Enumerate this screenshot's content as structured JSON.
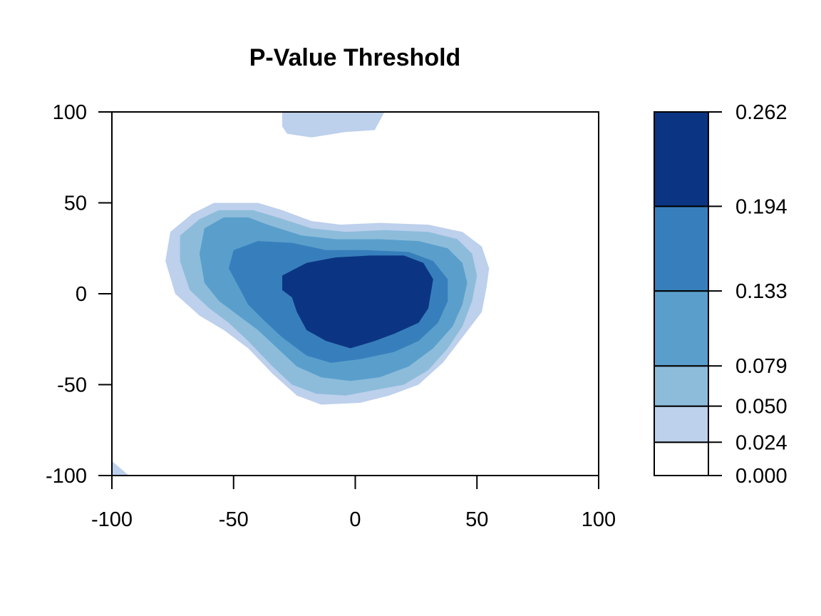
{
  "chart_data": {
    "type": "heatmap",
    "title": "P-Value Threshold",
    "xlabel": "",
    "ylabel": "",
    "xlim": [
      -100,
      100
    ],
    "ylim": [
      -100,
      100
    ],
    "x_ticks": [
      -100,
      -50,
      0,
      50,
      100
    ],
    "y_ticks": [
      -100,
      -50,
      0,
      50,
      100
    ],
    "legend_placement": "right",
    "grid": false,
    "colorbar": {
      "breaks": [
        0.0,
        0.024,
        0.05,
        0.079,
        0.133,
        0.194,
        0.262
      ],
      "labels": [
        "0.000",
        "0.024",
        "0.050",
        "0.079",
        "0.133",
        "0.194",
        "0.262"
      ],
      "colors": [
        "#ffffff",
        "#bdd0ec",
        "#8dbcdb",
        "#5a9fcc",
        "#377fbc",
        "#0b3583"
      ]
    },
    "regions": [
      {
        "level": 1,
        "polygon": [
          [
            -76,
            34
          ],
          [
            -67,
            44
          ],
          [
            -58,
            50
          ],
          [
            -40,
            50
          ],
          [
            -30,
            46
          ],
          [
            -18,
            40
          ],
          [
            -6,
            38
          ],
          [
            10,
            39
          ],
          [
            30,
            38
          ],
          [
            44,
            34
          ],
          [
            52,
            26
          ],
          [
            55,
            14
          ],
          [
            54,
            4
          ],
          [
            52,
            -10
          ],
          [
            44,
            -24
          ],
          [
            36,
            -38
          ],
          [
            26,
            -50
          ],
          [
            14,
            -56
          ],
          [
            2,
            -60
          ],
          [
            -14,
            -61
          ],
          [
            -24,
            -56
          ],
          [
            -34,
            -44
          ],
          [
            -44,
            -30
          ],
          [
            -54,
            -20
          ],
          [
            -64,
            -12
          ],
          [
            -74,
            0
          ],
          [
            -78,
            18
          ]
        ]
      },
      {
        "level": 1,
        "polygon": [
          [
            -30,
            100
          ],
          [
            12,
            100
          ],
          [
            8,
            90
          ],
          [
            -4,
            89
          ],
          [
            -18,
            86
          ],
          [
            -28,
            88
          ],
          [
            -30,
            92
          ]
        ]
      },
      {
        "level": 1,
        "polygon": [
          [
            -100,
            -92
          ],
          [
            -93,
            -100
          ],
          [
            -100,
            -100
          ]
        ]
      },
      {
        "level": 2,
        "polygon": [
          [
            -72,
            32
          ],
          [
            -64,
            41
          ],
          [
            -56,
            46
          ],
          [
            -42,
            46
          ],
          [
            -32,
            42
          ],
          [
            -18,
            36
          ],
          [
            -4,
            34
          ],
          [
            12,
            35
          ],
          [
            30,
            34
          ],
          [
            42,
            30
          ],
          [
            48,
            22
          ],
          [
            50,
            10
          ],
          [
            48,
            -4
          ],
          [
            44,
            -18
          ],
          [
            38,
            -30
          ],
          [
            30,
            -42
          ],
          [
            20,
            -50
          ],
          [
            8,
            -53
          ],
          [
            -4,
            -56
          ],
          [
            -16,
            -55
          ],
          [
            -26,
            -50
          ],
          [
            -34,
            -40
          ],
          [
            -44,
            -26
          ],
          [
            -52,
            -16
          ],
          [
            -60,
            -8
          ],
          [
            -68,
            2
          ],
          [
            -72,
            18
          ]
        ]
      },
      {
        "level": 3,
        "polygon": [
          [
            -62,
            36
          ],
          [
            -54,
            42
          ],
          [
            -44,
            42
          ],
          [
            -36,
            38
          ],
          [
            -22,
            32
          ],
          [
            -8,
            30
          ],
          [
            10,
            30
          ],
          [
            26,
            29
          ],
          [
            38,
            25
          ],
          [
            44,
            17
          ],
          [
            46,
            6
          ],
          [
            44,
            -6
          ],
          [
            40,
            -18
          ],
          [
            32,
            -30
          ],
          [
            22,
            -40
          ],
          [
            10,
            -46
          ],
          [
            -2,
            -48
          ],
          [
            -14,
            -46
          ],
          [
            -24,
            -40
          ],
          [
            -32,
            -30
          ],
          [
            -40,
            -20
          ],
          [
            -48,
            -12
          ],
          [
            -56,
            -4
          ],
          [
            -62,
            6
          ],
          [
            -64,
            22
          ]
        ]
      },
      {
        "level": 4,
        "polygon": [
          [
            -50,
            24
          ],
          [
            -40,
            29
          ],
          [
            -26,
            28
          ],
          [
            -12,
            24
          ],
          [
            4,
            24
          ],
          [
            22,
            23
          ],
          [
            32,
            18
          ],
          [
            38,
            8
          ],
          [
            38,
            -4
          ],
          [
            34,
            -16
          ],
          [
            26,
            -26
          ],
          [
            16,
            -32
          ],
          [
            2,
            -36
          ],
          [
            -10,
            -38
          ],
          [
            -20,
            -34
          ],
          [
            -30,
            -24
          ],
          [
            -38,
            -14
          ],
          [
            -44,
            -6
          ],
          [
            -48,
            4
          ],
          [
            -52,
            14
          ]
        ]
      },
      {
        "level": 5,
        "polygon": [
          [
            -30,
            10
          ],
          [
            -20,
            17
          ],
          [
            -8,
            20
          ],
          [
            6,
            21
          ],
          [
            20,
            21
          ],
          [
            28,
            17
          ],
          [
            32,
            8
          ],
          [
            30,
            -8
          ],
          [
            26,
            -16
          ],
          [
            16,
            -22
          ],
          [
            8,
            -26
          ],
          [
            -2,
            -30
          ],
          [
            -12,
            -26
          ],
          [
            -20,
            -20
          ],
          [
            -24,
            -10
          ],
          [
            -26,
            -2
          ],
          [
            -30,
            2
          ]
        ]
      }
    ]
  }
}
